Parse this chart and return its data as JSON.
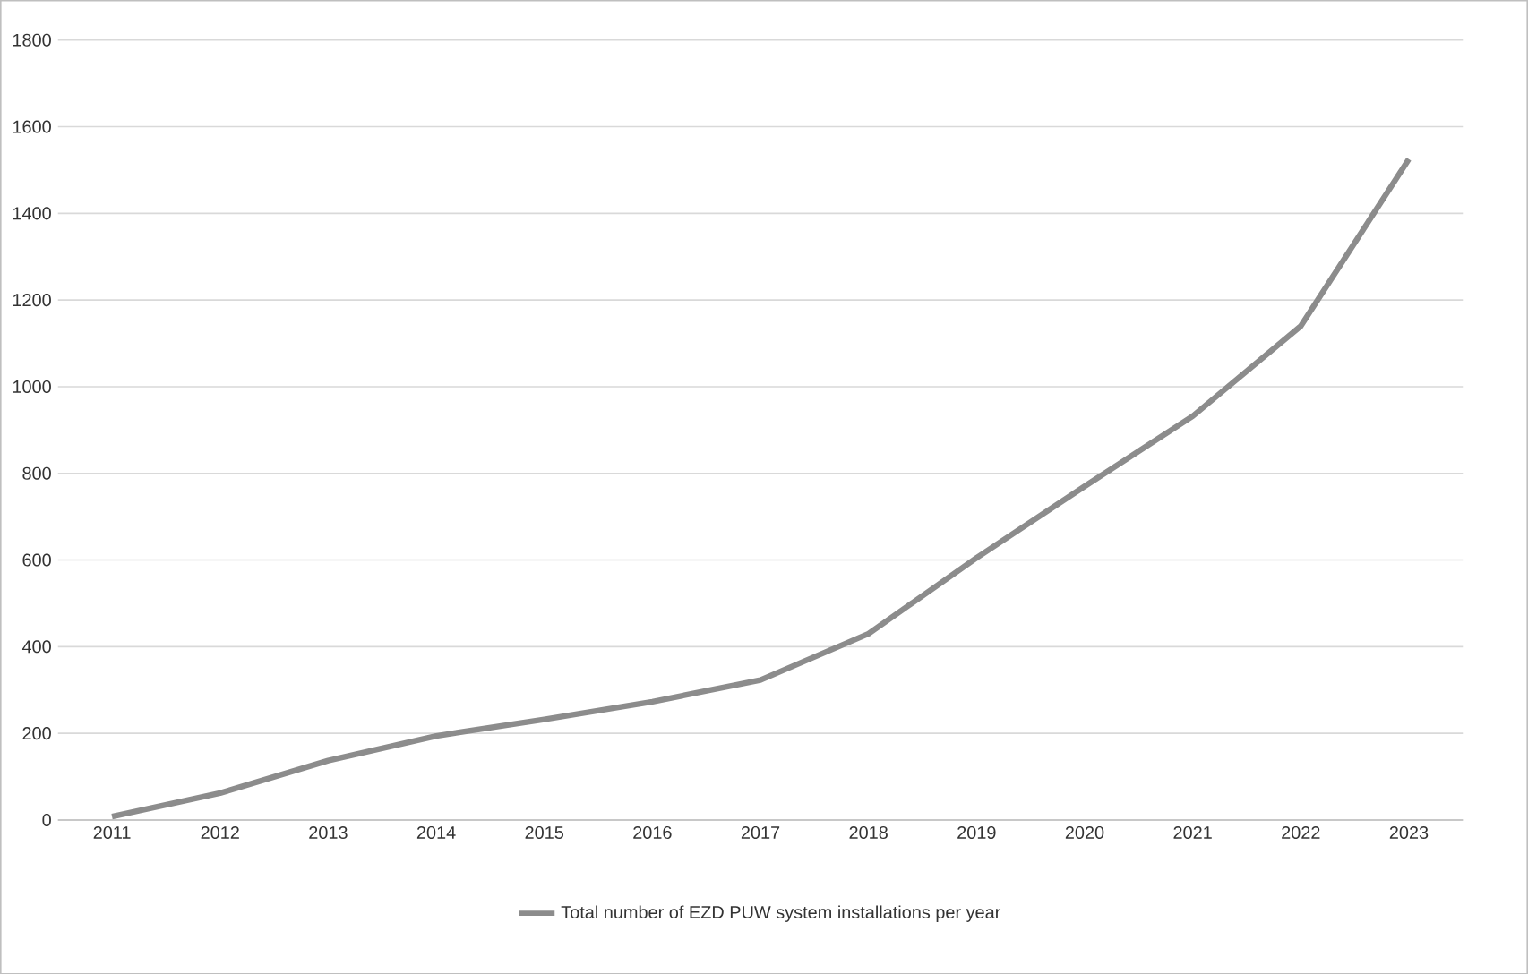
{
  "chart_data": {
    "type": "line",
    "categories": [
      "2011",
      "2012",
      "2013",
      "2014",
      "2015",
      "2016",
      "2017",
      "2018",
      "2019",
      "2020",
      "2021",
      "2022",
      "2023"
    ],
    "series": [
      {
        "name": "Total number of EZD PUW system installations per year",
        "color": "#8c8c8c",
        "values": [
          8,
          62,
          137,
          194,
          232,
          273,
          323,
          430,
          605,
          770,
          932,
          1140,
          1525
        ]
      }
    ],
    "ylim": [
      0,
      1800
    ],
    "yticks": [
      0,
      200,
      400,
      600,
      800,
      1000,
      1200,
      1400,
      1600,
      1800
    ],
    "grid": "y",
    "legend": "bottom",
    "marker": "none",
    "line_style": "solid"
  }
}
